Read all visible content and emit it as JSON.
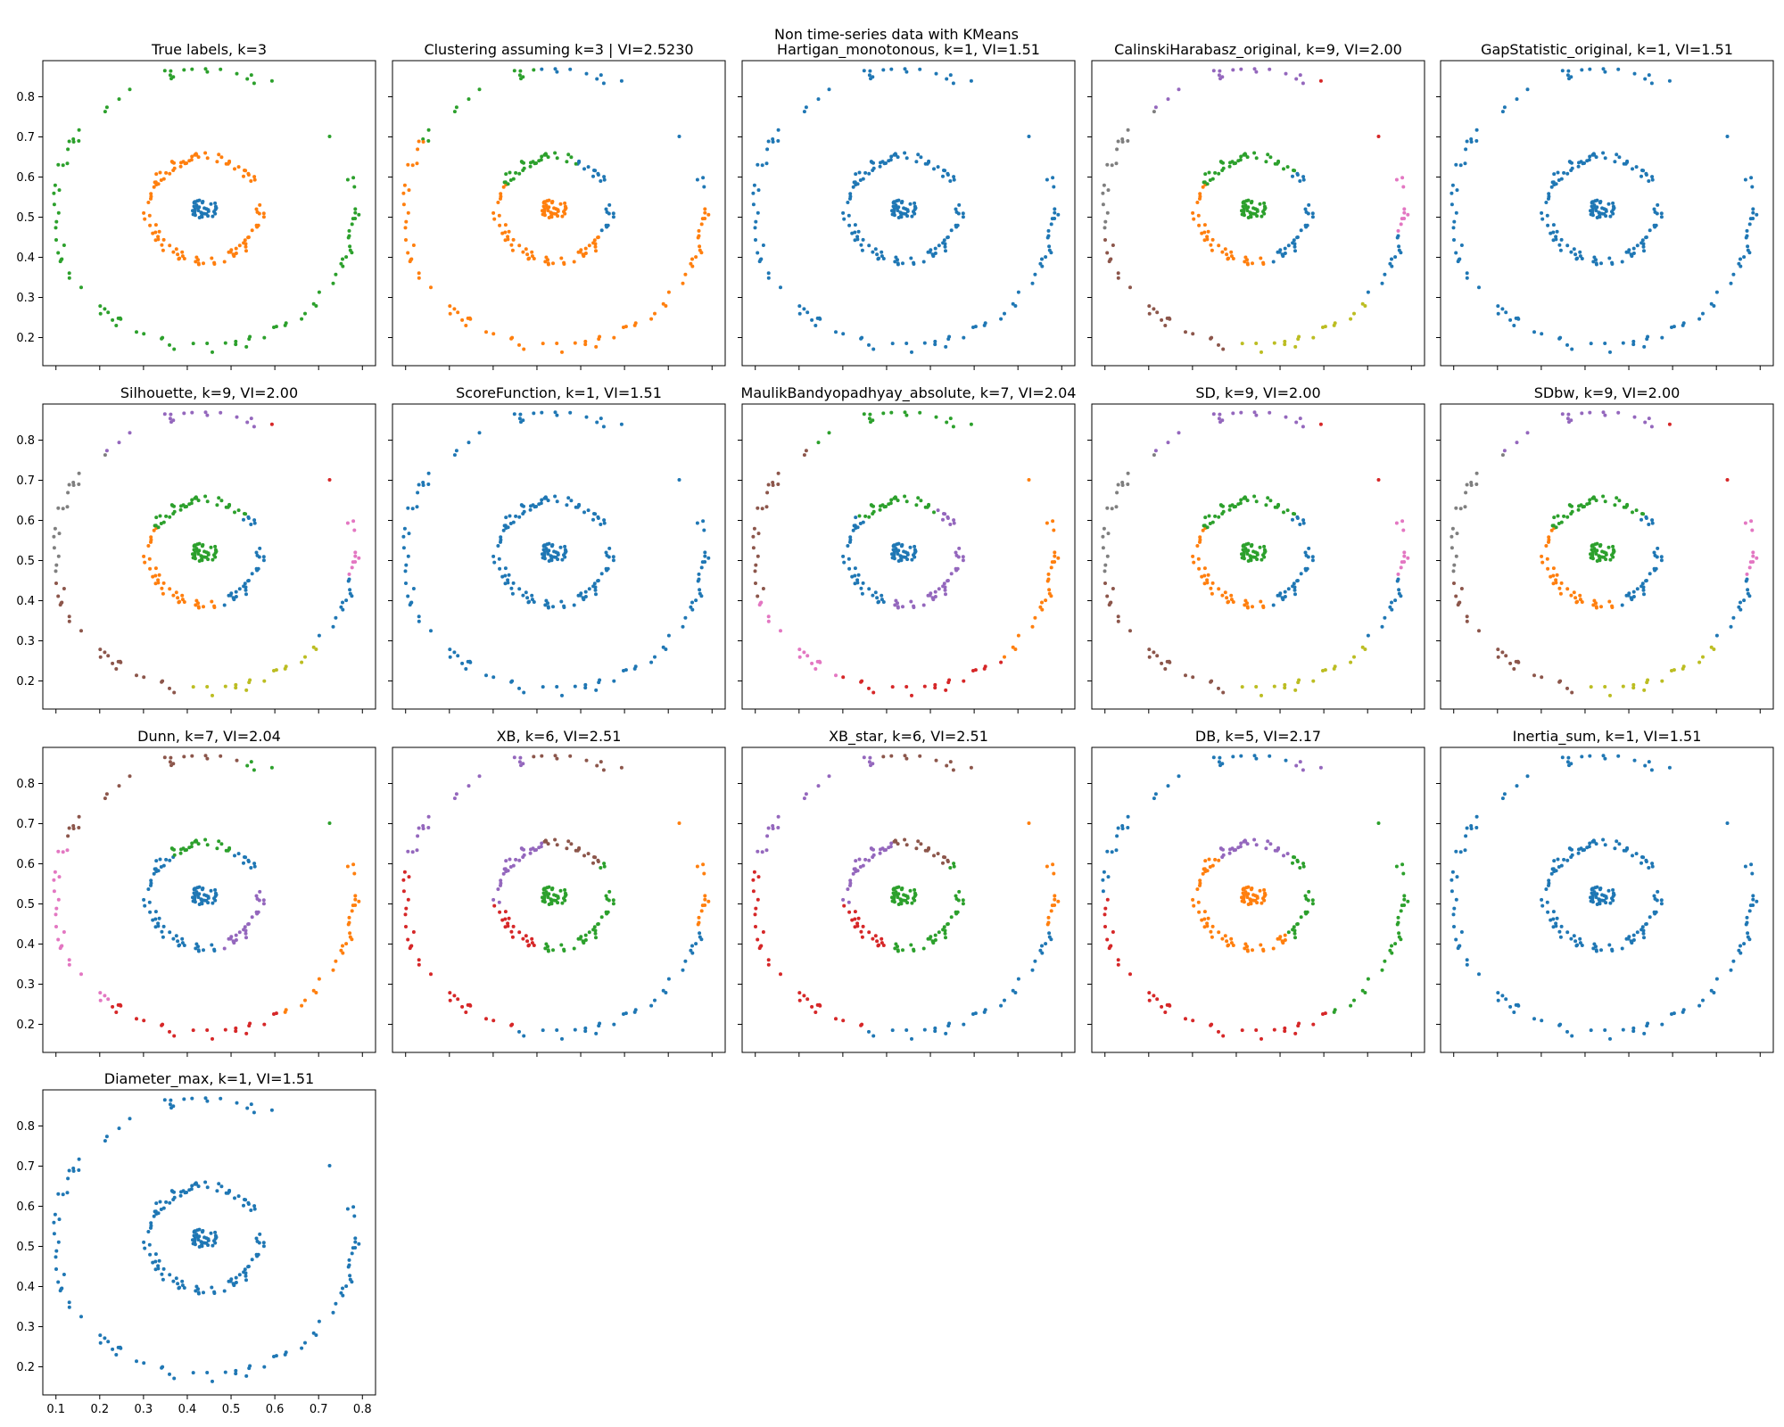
{
  "figure": {
    "suptitle": "Non time-series data with KMeans"
  },
  "palette": [
    "#1f77b4",
    "#ff7f0e",
    "#2ca02c",
    "#d62728",
    "#9467bd",
    "#8c564b",
    "#e377c2",
    "#7f7f7f",
    "#bcbd22"
  ],
  "chart_data": [
    {
      "type": "scatter",
      "title": "True labels, k=3",
      "k": 3,
      "partition": "true",
      "xlim": [
        0.07,
        0.83
      ],
      "ylim": [
        0.13,
        0.89
      ],
      "xticks": [
        0.1,
        0.2,
        0.3,
        0.4,
        0.5,
        0.6,
        0.7,
        0.8
      ],
      "yticks": [
        0.2,
        0.3,
        0.4,
        0.5,
        0.6,
        0.7,
        0.8
      ],
      "center": [
        0.44,
        0.52
      ],
      "radii": {
        "inner": 0.03,
        "middle": 0.13,
        "outer": 0.345
      },
      "x_tick_labels_shown": false,
      "y_tick_labels_shown": true
    },
    {
      "type": "scatter",
      "title": "Clustering assuming k=3 | VI=2.5230",
      "k": 3,
      "partition": "k3",
      "xlim": [
        0.07,
        0.83
      ],
      "ylim": [
        0.13,
        0.89
      ],
      "xticks": [
        0.1,
        0.2,
        0.3,
        0.4,
        0.5,
        0.6,
        0.7,
        0.8
      ],
      "yticks": [
        0.2,
        0.3,
        0.4,
        0.5,
        0.6,
        0.7,
        0.8
      ],
      "center": [
        0.44,
        0.52
      ],
      "radii": {
        "inner": 0.03,
        "middle": 0.13,
        "outer": 0.345
      },
      "x_tick_labels_shown": false,
      "y_tick_labels_shown": false
    },
    {
      "type": "scatter",
      "title": "Hartigan_monotonous, k=1, VI=1.51",
      "k": 1,
      "partition": "k1",
      "xlim": [
        0.07,
        0.83
      ],
      "ylim": [
        0.13,
        0.89
      ],
      "xticks": [
        0.1,
        0.2,
        0.3,
        0.4,
        0.5,
        0.6,
        0.7,
        0.8
      ],
      "yticks": [
        0.2,
        0.3,
        0.4,
        0.5,
        0.6,
        0.7,
        0.8
      ],
      "center": [
        0.44,
        0.52
      ],
      "radii": {
        "inner": 0.03,
        "middle": 0.13,
        "outer": 0.345
      },
      "x_tick_labels_shown": false,
      "y_tick_labels_shown": false
    },
    {
      "type": "scatter",
      "title": "CalinskiHarabasz_original, k=9, VI=2.00",
      "k": 9,
      "partition": "k9",
      "xlim": [
        0.07,
        0.83
      ],
      "ylim": [
        0.13,
        0.89
      ],
      "xticks": [
        0.1,
        0.2,
        0.3,
        0.4,
        0.5,
        0.6,
        0.7,
        0.8
      ],
      "yticks": [
        0.2,
        0.3,
        0.4,
        0.5,
        0.6,
        0.7,
        0.8
      ],
      "center": [
        0.44,
        0.52
      ],
      "radii": {
        "inner": 0.03,
        "middle": 0.13,
        "outer": 0.345
      },
      "x_tick_labels_shown": false,
      "y_tick_labels_shown": false
    },
    {
      "type": "scatter",
      "title": "GapStatistic_original, k=1, VI=1.51",
      "k": 1,
      "partition": "k1",
      "xlim": [
        0.07,
        0.83
      ],
      "ylim": [
        0.13,
        0.89
      ],
      "xticks": [
        0.1,
        0.2,
        0.3,
        0.4,
        0.5,
        0.6,
        0.7,
        0.8
      ],
      "yticks": [
        0.2,
        0.3,
        0.4,
        0.5,
        0.6,
        0.7,
        0.8
      ],
      "center": [
        0.44,
        0.52
      ],
      "radii": {
        "inner": 0.03,
        "middle": 0.13,
        "outer": 0.345
      },
      "x_tick_labels_shown": false,
      "y_tick_labels_shown": false
    },
    {
      "type": "scatter",
      "title": "Silhouette, k=9, VI=2.00",
      "k": 9,
      "partition": "k9",
      "xlim": [
        0.07,
        0.83
      ],
      "ylim": [
        0.13,
        0.89
      ],
      "xticks": [
        0.1,
        0.2,
        0.3,
        0.4,
        0.5,
        0.6,
        0.7,
        0.8
      ],
      "yticks": [
        0.2,
        0.3,
        0.4,
        0.5,
        0.6,
        0.7,
        0.8
      ],
      "center": [
        0.44,
        0.52
      ],
      "radii": {
        "inner": 0.03,
        "middle": 0.13,
        "outer": 0.345
      },
      "x_tick_labels_shown": false,
      "y_tick_labels_shown": true
    },
    {
      "type": "scatter",
      "title": "ScoreFunction, k=1, VI=1.51",
      "k": 1,
      "partition": "k1",
      "xlim": [
        0.07,
        0.83
      ],
      "ylim": [
        0.13,
        0.89
      ],
      "xticks": [
        0.1,
        0.2,
        0.3,
        0.4,
        0.5,
        0.6,
        0.7,
        0.8
      ],
      "yticks": [
        0.2,
        0.3,
        0.4,
        0.5,
        0.6,
        0.7,
        0.8
      ],
      "center": [
        0.44,
        0.52
      ],
      "radii": {
        "inner": 0.03,
        "middle": 0.13,
        "outer": 0.345
      },
      "x_tick_labels_shown": false,
      "y_tick_labels_shown": false
    },
    {
      "type": "scatter",
      "title": "MaulikBandyopadhyay_absolute, k=7, VI=2.04",
      "k": 7,
      "partition": "k7_maulik",
      "xlim": [
        0.07,
        0.83
      ],
      "ylim": [
        0.13,
        0.89
      ],
      "xticks": [
        0.1,
        0.2,
        0.3,
        0.4,
        0.5,
        0.6,
        0.7,
        0.8
      ],
      "yticks": [
        0.2,
        0.3,
        0.4,
        0.5,
        0.6,
        0.7,
        0.8
      ],
      "center": [
        0.44,
        0.52
      ],
      "radii": {
        "inner": 0.03,
        "middle": 0.13,
        "outer": 0.345
      },
      "x_tick_labels_shown": false,
      "y_tick_labels_shown": false
    },
    {
      "type": "scatter",
      "title": "SD, k=9, VI=2.00",
      "k": 9,
      "partition": "k9",
      "xlim": [
        0.07,
        0.83
      ],
      "ylim": [
        0.13,
        0.89
      ],
      "xticks": [
        0.1,
        0.2,
        0.3,
        0.4,
        0.5,
        0.6,
        0.7,
        0.8
      ],
      "yticks": [
        0.2,
        0.3,
        0.4,
        0.5,
        0.6,
        0.7,
        0.8
      ],
      "center": [
        0.44,
        0.52
      ],
      "radii": {
        "inner": 0.03,
        "middle": 0.13,
        "outer": 0.345
      },
      "x_tick_labels_shown": false,
      "y_tick_labels_shown": false
    },
    {
      "type": "scatter",
      "title": "SDbw, k=9, VI=2.00",
      "k": 9,
      "partition": "k9",
      "xlim": [
        0.07,
        0.83
      ],
      "ylim": [
        0.13,
        0.89
      ],
      "xticks": [
        0.1,
        0.2,
        0.3,
        0.4,
        0.5,
        0.6,
        0.7,
        0.8
      ],
      "yticks": [
        0.2,
        0.3,
        0.4,
        0.5,
        0.6,
        0.7,
        0.8
      ],
      "center": [
        0.44,
        0.52
      ],
      "radii": {
        "inner": 0.03,
        "middle": 0.13,
        "outer": 0.345
      },
      "x_tick_labels_shown": false,
      "y_tick_labels_shown": false
    },
    {
      "type": "scatter",
      "title": "Dunn, k=7, VI=2.04",
      "k": 7,
      "partition": "k7_dunn",
      "xlim": [
        0.07,
        0.83
      ],
      "ylim": [
        0.13,
        0.89
      ],
      "xticks": [
        0.1,
        0.2,
        0.3,
        0.4,
        0.5,
        0.6,
        0.7,
        0.8
      ],
      "yticks": [
        0.2,
        0.3,
        0.4,
        0.5,
        0.6,
        0.7,
        0.8
      ],
      "center": [
        0.44,
        0.52
      ],
      "radii": {
        "inner": 0.03,
        "middle": 0.13,
        "outer": 0.345
      },
      "x_tick_labels_shown": false,
      "y_tick_labels_shown": true
    },
    {
      "type": "scatter",
      "title": "XB, k=6, VI=2.51",
      "k": 6,
      "partition": "k6",
      "xlim": [
        0.07,
        0.83
      ],
      "ylim": [
        0.13,
        0.89
      ],
      "xticks": [
        0.1,
        0.2,
        0.3,
        0.4,
        0.5,
        0.6,
        0.7,
        0.8
      ],
      "yticks": [
        0.2,
        0.3,
        0.4,
        0.5,
        0.6,
        0.7,
        0.8
      ],
      "center": [
        0.44,
        0.52
      ],
      "radii": {
        "inner": 0.03,
        "middle": 0.13,
        "outer": 0.345
      },
      "x_tick_labels_shown": false,
      "y_tick_labels_shown": false
    },
    {
      "type": "scatter",
      "title": "XB_star, k=6, VI=2.51",
      "k": 6,
      "partition": "k6",
      "xlim": [
        0.07,
        0.83
      ],
      "ylim": [
        0.13,
        0.89
      ],
      "xticks": [
        0.1,
        0.2,
        0.3,
        0.4,
        0.5,
        0.6,
        0.7,
        0.8
      ],
      "yticks": [
        0.2,
        0.3,
        0.4,
        0.5,
        0.6,
        0.7,
        0.8
      ],
      "center": [
        0.44,
        0.52
      ],
      "radii": {
        "inner": 0.03,
        "middle": 0.13,
        "outer": 0.345
      },
      "x_tick_labels_shown": false,
      "y_tick_labels_shown": false
    },
    {
      "type": "scatter",
      "title": "DB, k=5, VI=2.17",
      "k": 5,
      "partition": "k5",
      "xlim": [
        0.07,
        0.83
      ],
      "ylim": [
        0.13,
        0.89
      ],
      "xticks": [
        0.1,
        0.2,
        0.3,
        0.4,
        0.5,
        0.6,
        0.7,
        0.8
      ],
      "yticks": [
        0.2,
        0.3,
        0.4,
        0.5,
        0.6,
        0.7,
        0.8
      ],
      "center": [
        0.44,
        0.52
      ],
      "radii": {
        "inner": 0.03,
        "middle": 0.13,
        "outer": 0.345
      },
      "x_tick_labels_shown": false,
      "y_tick_labels_shown": false
    },
    {
      "type": "scatter",
      "title": "Inertia_sum, k=1, VI=1.51",
      "k": 1,
      "partition": "k1",
      "xlim": [
        0.07,
        0.83
      ],
      "ylim": [
        0.13,
        0.89
      ],
      "xticks": [
        0.1,
        0.2,
        0.3,
        0.4,
        0.5,
        0.6,
        0.7,
        0.8
      ],
      "yticks": [
        0.2,
        0.3,
        0.4,
        0.5,
        0.6,
        0.7,
        0.8
      ],
      "center": [
        0.44,
        0.52
      ],
      "radii": {
        "inner": 0.03,
        "middle": 0.13,
        "outer": 0.345
      },
      "x_tick_labels_shown": false,
      "y_tick_labels_shown": false
    },
    {
      "type": "scatter",
      "title": "Diameter_max, k=1, VI=1.51",
      "k": 1,
      "partition": "k1",
      "xlim": [
        0.07,
        0.83
      ],
      "ylim": [
        0.13,
        0.89
      ],
      "xticks": [
        0.1,
        0.2,
        0.3,
        0.4,
        0.5,
        0.6,
        0.7,
        0.8
      ],
      "yticks": [
        0.2,
        0.3,
        0.4,
        0.5,
        0.6,
        0.7,
        0.8
      ],
      "center": [
        0.44,
        0.52
      ],
      "radii": {
        "inner": 0.03,
        "middle": 0.13,
        "outer": 0.345
      },
      "x_tick_labels_shown": true,
      "y_tick_labels_shown": true
    }
  ]
}
